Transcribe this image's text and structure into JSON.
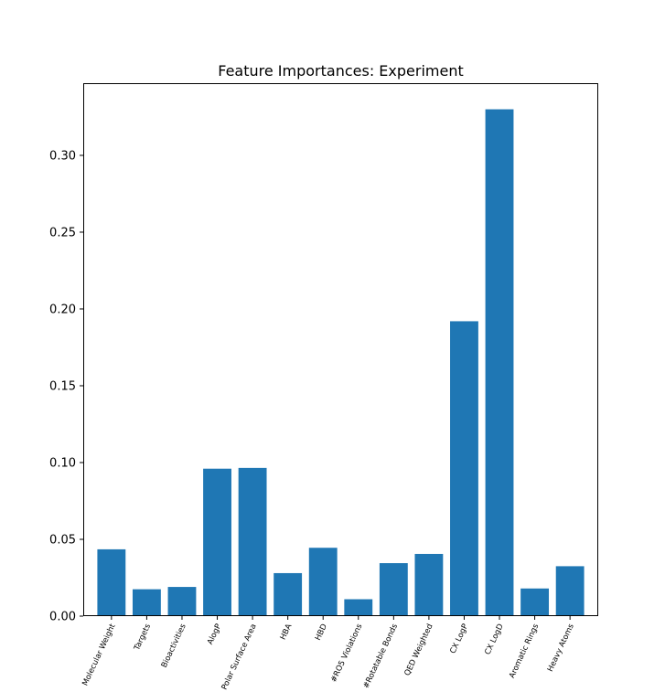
{
  "chart_data": {
    "type": "bar",
    "title": "Feature Importances: Experiment",
    "xlabel": "",
    "ylabel": "",
    "categories": [
      "Molecular Weight",
      "Targets",
      "Bioactivities",
      "AlogP",
      "Polar Surface Area",
      "HBA",
      "HBD",
      "#RO5 Violations",
      "#Rotatable Bonds",
      "QED Weighted",
      "CX LogP",
      "CX LogD",
      "Aromatic Rings",
      "Heavy Atoms"
    ],
    "values": [
      0.0435,
      0.0175,
      0.019,
      0.096,
      0.0965,
      0.028,
      0.0445,
      0.011,
      0.0345,
      0.0405,
      0.192,
      0.33,
      0.018,
      0.0325
    ],
    "ylim": [
      0,
      0.347
    ],
    "yticks": [
      "0.00",
      "0.05",
      "0.10",
      "0.15",
      "0.20",
      "0.25",
      "0.30"
    ],
    "ytick_values": [
      0,
      0.05,
      0.1,
      0.15,
      0.2,
      0.25,
      0.3
    ],
    "bar_color": "#1f77b4",
    "grid": false,
    "legend": "none"
  }
}
